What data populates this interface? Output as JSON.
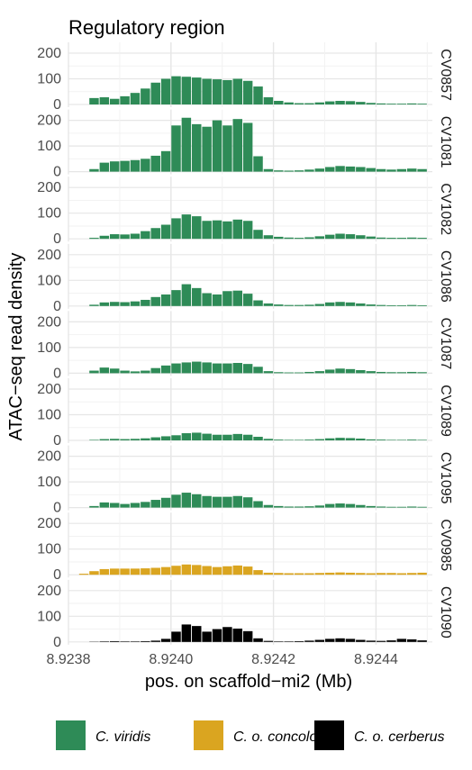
{
  "chart_data": {
    "type": "bar",
    "title": "Regulatory region",
    "xlabel": "pos. on scaffold−mi2 (Mb)",
    "ylabel": "ATAC−seq read density",
    "xlim": [
      8.9238,
      8.92451
    ],
    "ylim": [
      0,
      215
    ],
    "x_ticks": [
      8.9238,
      8.924,
      8.9242,
      8.9244
    ],
    "x_tick_labels": [
      "8.9238",
      "8.9240",
      "8.9242",
      "8.9244"
    ],
    "y_ticks": [
      0,
      100,
      200
    ],
    "y_tick_labels": [
      "0",
      "100",
      "200"
    ],
    "grid": true,
    "legend_position": "bottom",
    "colors": {
      "C. viridis": "#2e8b57",
      "C. o. concolor": "#daa520",
      "C. o. cerberus": "#000000"
    },
    "legend": [
      {
        "label": "C. viridis",
        "color": "#2e8b57"
      },
      {
        "label": "C. o. concolor",
        "color": "#daa520"
      },
      {
        "label": "C. o. cerberus",
        "color": "#000000"
      }
    ],
    "x": [
      8.92383,
      8.92385,
      8.92387,
      8.92389,
      8.92391,
      8.92393,
      8.92395,
      8.92397,
      8.92399,
      8.92401,
      8.92403,
      8.92405,
      8.92407,
      8.92409,
      8.92411,
      8.92413,
      8.92415,
      8.92417,
      8.92419,
      8.92421,
      8.92423,
      8.92425,
      8.92427,
      8.92429,
      8.92431,
      8.92433,
      8.92435,
      8.92437,
      8.92439,
      8.92441,
      8.92443,
      8.92445,
      8.92447,
      8.92449
    ],
    "panels": [
      {
        "label": "CV0857",
        "species": "C. viridis",
        "values": [
          0,
          25,
          28,
          22,
          32,
          45,
          62,
          85,
          100,
          110,
          108,
          105,
          100,
          98,
          95,
          100,
          92,
          70,
          28,
          14,
          8,
          5,
          5,
          8,
          12,
          14,
          13,
          10,
          6,
          4,
          3,
          3,
          4,
          3
        ]
      },
      {
        "label": "CV1081",
        "species": "C. viridis",
        "values": [
          0,
          10,
          35,
          40,
          42,
          45,
          50,
          62,
          80,
          180,
          210,
          185,
          175,
          200,
          180,
          205,
          190,
          60,
          10,
          5,
          4,
          5,
          8,
          12,
          18,
          22,
          20,
          18,
          14,
          10,
          8,
          10,
          12,
          10
        ]
      },
      {
        "label": "CV1082",
        "species": "C. viridis",
        "values": [
          0,
          4,
          12,
          18,
          17,
          20,
          30,
          42,
          55,
          80,
          95,
          88,
          70,
          72,
          68,
          75,
          70,
          35,
          14,
          8,
          5,
          4,
          6,
          10,
          16,
          20,
          18,
          14,
          9,
          5,
          4,
          4,
          5,
          4
        ]
      },
      {
        "label": "CV1086",
        "species": "C. viridis",
        "values": [
          0,
          5,
          14,
          16,
          15,
          18,
          24,
          35,
          45,
          62,
          85,
          70,
          50,
          45,
          58,
          60,
          48,
          22,
          10,
          6,
          4,
          4,
          5,
          8,
          14,
          16,
          14,
          10,
          6,
          4,
          3,
          3,
          4,
          3
        ]
      },
      {
        "label": "CV1087",
        "species": "C. viridis",
        "values": [
          0,
          10,
          22,
          18,
          10,
          7,
          10,
          20,
          30,
          38,
          42,
          45,
          42,
          38,
          38,
          40,
          36,
          25,
          8,
          4,
          3,
          3,
          5,
          8,
          14,
          18,
          16,
          12,
          8,
          5,
          4,
          4,
          5,
          4
        ]
      },
      {
        "label": "CV1089",
        "species": "C. viridis",
        "values": [
          0,
          2,
          5,
          6,
          5,
          6,
          8,
          12,
          16,
          20,
          28,
          30,
          26,
          22,
          22,
          25,
          22,
          14,
          6,
          3,
          2,
          2,
          3,
          5,
          8,
          10,
          9,
          7,
          4,
          3,
          2,
          2,
          3,
          2
        ]
      },
      {
        "label": "CV1095",
        "species": "C. viridis",
        "values": [
          0,
          6,
          20,
          18,
          14,
          18,
          22,
          30,
          38,
          50,
          58,
          52,
          45,
          42,
          42,
          45,
          40,
          25,
          10,
          6,
          4,
          4,
          5,
          8,
          14,
          16,
          14,
          10,
          6,
          4,
          3,
          3,
          4,
          3
        ]
      },
      {
        "label": "CV0985",
        "species": "C. o. concolor",
        "values": [
          4,
          14,
          22,
          24,
          24,
          24,
          25,
          27,
          30,
          35,
          40,
          38,
          34,
          30,
          33,
          36,
          32,
          18,
          8,
          7,
          6,
          6,
          6,
          7,
          8,
          9,
          8,
          7,
          6,
          7,
          7,
          6,
          7,
          8
        ]
      },
      {
        "label": "CV1090",
        "species": "C. o. cerberus",
        "values": [
          0,
          1,
          2,
          3,
          2,
          2,
          3,
          5,
          12,
          40,
          68,
          62,
          40,
          50,
          58,
          52,
          42,
          14,
          4,
          2,
          2,
          3,
          5,
          8,
          12,
          14,
          12,
          8,
          5,
          4,
          6,
          12,
          10,
          6
        ]
      }
    ]
  }
}
